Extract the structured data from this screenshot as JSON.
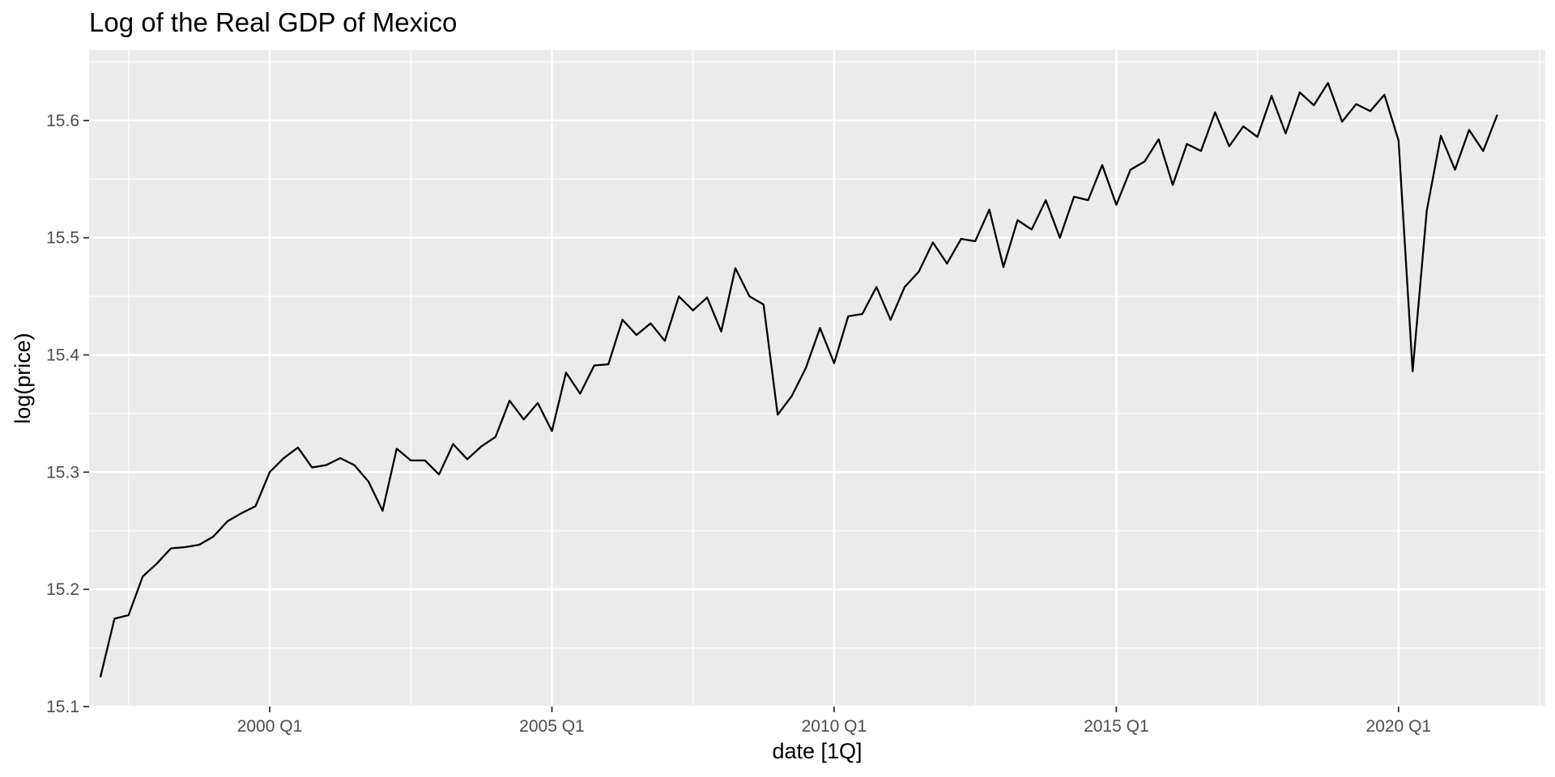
{
  "chart_data": {
    "type": "line",
    "title": "Log of the Real GDP of Mexico",
    "xlabel": "date [1Q]",
    "ylabel": "log(price)",
    "grid": true,
    "legend": "none",
    "colors": {
      "panel": "#ebebeb",
      "grid": "#ffffff",
      "line": "#000000",
      "tick_text": "#4d4d4d"
    },
    "xlim": [
      1996.8,
      2022.6
    ],
    "ylim": [
      15.1,
      15.66
    ],
    "x_ticks": [
      {
        "value": 2000,
        "label": "2000 Q1"
      },
      {
        "value": 2005,
        "label": "2005 Q1"
      },
      {
        "value": 2010,
        "label": "2010 Q1"
      },
      {
        "value": 2015,
        "label": "2015 Q1"
      },
      {
        "value": 2020,
        "label": "2020 Q1"
      }
    ],
    "x_minor": [
      1997.5,
      2002.5,
      2007.5,
      2012.5,
      2017.5,
      2022.5
    ],
    "y_ticks": [
      {
        "value": 15.1,
        "label": "15.1"
      },
      {
        "value": 15.2,
        "label": "15.2"
      },
      {
        "value": 15.3,
        "label": "15.3"
      },
      {
        "value": 15.4,
        "label": "15.4"
      },
      {
        "value": 15.5,
        "label": "15.5"
      },
      {
        "value": 15.6,
        "label": "15.6"
      }
    ],
    "y_minor": [
      15.15,
      15.25,
      15.35,
      15.45,
      15.55,
      15.65
    ],
    "series": [
      {
        "x_start": 1997.0,
        "x_step": 0.25,
        "values": [
          15.125,
          15.175,
          15.178,
          15.211,
          15.222,
          15.235,
          15.236,
          15.238,
          15.245,
          15.258,
          15.265,
          15.271,
          15.3,
          15.312,
          15.321,
          15.304,
          15.306,
          15.312,
          15.306,
          15.292,
          15.267,
          15.32,
          15.31,
          15.31,
          15.298,
          15.324,
          15.311,
          15.322,
          15.33,
          15.361,
          15.345,
          15.359,
          15.335,
          15.385,
          15.367,
          15.391,
          15.392,
          15.43,
          15.417,
          15.427,
          15.412,
          15.45,
          15.438,
          15.449,
          15.42,
          15.474,
          15.45,
          15.443,
          15.349,
          15.365,
          15.389,
          15.423,
          15.393,
          15.433,
          15.435,
          15.458,
          15.43,
          15.458,
          15.471,
          15.496,
          15.478,
          15.499,
          15.497,
          15.524,
          15.475,
          15.515,
          15.507,
          15.532,
          15.5,
          15.535,
          15.532,
          15.562,
          15.528,
          15.558,
          15.565,
          15.584,
          15.545,
          15.58,
          15.574,
          15.607,
          15.578,
          15.595,
          15.586,
          15.621,
          15.589,
          15.624,
          15.613,
          15.632,
          15.599,
          15.614,
          15.608,
          15.622,
          15.583,
          15.386,
          15.523,
          15.587,
          15.558,
          15.592,
          15.574,
          15.605
        ]
      }
    ]
  }
}
